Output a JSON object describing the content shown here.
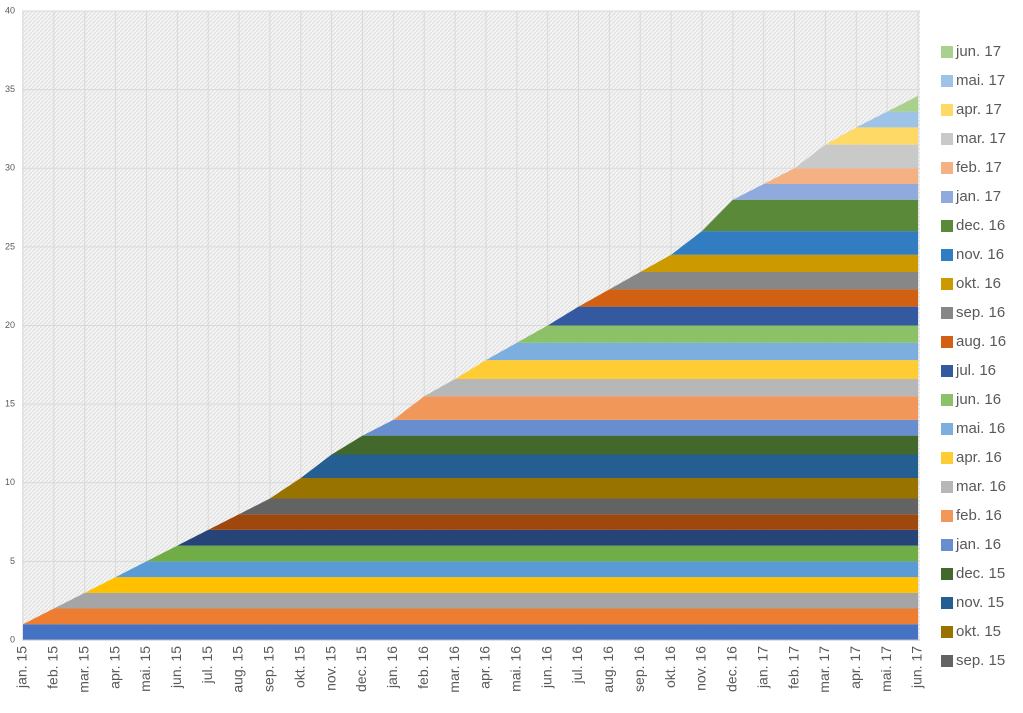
{
  "chart_data": {
    "type": "stacked-area",
    "categories": [
      "jan. 15",
      "feb. 15",
      "mar. 15",
      "apr. 15",
      "mai. 15",
      "jun. 15",
      "jul. 15",
      "aug. 15",
      "sep. 15",
      "okt. 15",
      "nov. 15",
      "dec. 15",
      "jan. 16",
      "feb. 16",
      "mar. 16",
      "apr. 16",
      "mai. 16",
      "jun. 16",
      "jul. 16",
      "aug. 16",
      "sep. 16",
      "okt. 16",
      "nov. 16",
      "dec. 16",
      "jan. 17",
      "feb. 17",
      "mar. 17",
      "apr. 17",
      "mai. 17",
      "jun. 17"
    ],
    "ylim": [
      0,
      40
    ],
    "yticks": [
      0,
      5,
      10,
      15,
      20,
      25,
      30,
      35,
      40
    ],
    "grid": true,
    "series": [
      {
        "color": "#4472c4",
        "values": [
          1,
          1,
          1,
          1,
          1,
          1,
          1,
          1,
          1,
          1,
          1,
          1,
          1,
          1,
          1,
          1,
          1,
          1,
          1,
          1,
          1,
          1,
          1,
          1,
          1,
          1,
          1,
          1,
          1,
          1
        ]
      },
      {
        "color": "#ed7d31",
        "values": [
          0,
          1,
          1,
          1,
          1,
          1,
          1,
          1,
          1,
          1,
          1,
          1,
          1,
          1,
          1,
          1,
          1,
          1,
          1,
          1,
          1,
          1,
          1,
          1,
          1,
          1,
          1,
          1,
          1,
          1
        ]
      },
      {
        "color": "#a5a5a5",
        "values": [
          0,
          0,
          1,
          1,
          1,
          1,
          1,
          1,
          1,
          1,
          1,
          1,
          1,
          1,
          1,
          1,
          1,
          1,
          1,
          1,
          1,
          1,
          1,
          1,
          1,
          1,
          1,
          1,
          1,
          1
        ]
      },
      {
        "color": "#ffc000",
        "values": [
          0,
          0,
          0,
          1,
          1,
          1,
          1,
          1,
          1,
          1,
          1,
          1,
          1,
          1,
          1,
          1,
          1,
          1,
          1,
          1,
          1,
          1,
          1,
          1,
          1,
          1,
          1,
          1,
          1,
          1
        ]
      },
      {
        "color": "#5b9bd5",
        "values": [
          0,
          0,
          0,
          0,
          1,
          1,
          1,
          1,
          1,
          1,
          1,
          1,
          1,
          1,
          1,
          1,
          1,
          1,
          1,
          1,
          1,
          1,
          1,
          1,
          1,
          1,
          1,
          1,
          1,
          1
        ]
      },
      {
        "color": "#70ad47",
        "values": [
          0,
          0,
          0,
          0,
          0,
          1,
          1,
          1,
          1,
          1,
          1,
          1,
          1,
          1,
          1,
          1,
          1,
          1,
          1,
          1,
          1,
          1,
          1,
          1,
          1,
          1,
          1,
          1,
          1,
          1
        ]
      },
      {
        "color": "#264478",
        "values": [
          0,
          0,
          0,
          0,
          0,
          0,
          1,
          1,
          1,
          1,
          1,
          1,
          1,
          1,
          1,
          1,
          1,
          1,
          1,
          1,
          1,
          1,
          1,
          1,
          1,
          1,
          1,
          1,
          1,
          1
        ]
      },
      {
        "color": "#9e480e",
        "values": [
          0,
          0,
          0,
          0,
          0,
          0,
          0,
          1,
          1,
          1,
          1,
          1,
          1,
          1,
          1,
          1,
          1,
          1,
          1,
          1,
          1,
          1,
          1,
          1,
          1,
          1,
          1,
          1,
          1,
          1
        ]
      },
      {
        "name": "sep. 15",
        "color": "#636363",
        "values": [
          0,
          0,
          0,
          0,
          0,
          0,
          0,
          0,
          1,
          1,
          1,
          1,
          1,
          1,
          1,
          1,
          1,
          1,
          1,
          1,
          1,
          1,
          1,
          1,
          1,
          1,
          1,
          1,
          1,
          1
        ]
      },
      {
        "name": "okt. 15",
        "color": "#997300",
        "values": [
          0,
          0,
          0,
          0,
          0,
          0,
          0,
          0,
          0,
          1.3,
          1.3,
          1.3,
          1.3,
          1.3,
          1.3,
          1.3,
          1.3,
          1.3,
          1.3,
          1.3,
          1.3,
          1.3,
          1.3,
          1.3,
          1.3,
          1.3,
          1.3,
          1.3,
          1.3,
          1.3
        ]
      },
      {
        "name": "nov. 15",
        "color": "#255e91",
        "values": [
          0,
          0,
          0,
          0,
          0,
          0,
          0,
          0,
          0,
          0,
          1.5,
          1.5,
          1.5,
          1.5,
          1.5,
          1.5,
          1.5,
          1.5,
          1.5,
          1.5,
          1.5,
          1.5,
          1.5,
          1.5,
          1.5,
          1.5,
          1.5,
          1.5,
          1.5,
          1.5
        ]
      },
      {
        "name": "dec. 15",
        "color": "#43682b",
        "values": [
          0,
          0,
          0,
          0,
          0,
          0,
          0,
          0,
          0,
          0,
          0,
          1.2,
          1.2,
          1.2,
          1.2,
          1.2,
          1.2,
          1.2,
          1.2,
          1.2,
          1.2,
          1.2,
          1.2,
          1.2,
          1.2,
          1.2,
          1.2,
          1.2,
          1.2,
          1.2
        ]
      },
      {
        "name": "jan. 16",
        "color": "#698ed0",
        "values": [
          0,
          0,
          0,
          0,
          0,
          0,
          0,
          0,
          0,
          0,
          0,
          0,
          1,
          1,
          1,
          1,
          1,
          1,
          1,
          1,
          1,
          1,
          1,
          1,
          1,
          1,
          1,
          1,
          1,
          1
        ]
      },
      {
        "name": "feb. 16",
        "color": "#f1975a",
        "values": [
          0,
          0,
          0,
          0,
          0,
          0,
          0,
          0,
          0,
          0,
          0,
          0,
          0,
          1.5,
          1.5,
          1.5,
          1.5,
          1.5,
          1.5,
          1.5,
          1.5,
          1.5,
          1.5,
          1.5,
          1.5,
          1.5,
          1.5,
          1.5,
          1.5,
          1.5
        ]
      },
      {
        "name": "mar. 16",
        "color": "#b7b7b7",
        "values": [
          0,
          0,
          0,
          0,
          0,
          0,
          0,
          0,
          0,
          0,
          0,
          0,
          0,
          0,
          1.1,
          1.1,
          1.1,
          1.1,
          1.1,
          1.1,
          1.1,
          1.1,
          1.1,
          1.1,
          1.1,
          1.1,
          1.1,
          1.1,
          1.1,
          1.1
        ]
      },
      {
        "name": "apr. 16",
        "color": "#ffcd33",
        "values": [
          0,
          0,
          0,
          0,
          0,
          0,
          0,
          0,
          0,
          0,
          0,
          0,
          0,
          0,
          0,
          1.2,
          1.2,
          1.2,
          1.2,
          1.2,
          1.2,
          1.2,
          1.2,
          1.2,
          1.2,
          1.2,
          1.2,
          1.2,
          1.2,
          1.2
        ]
      },
      {
        "name": "mai. 16",
        "color": "#7cafdd",
        "values": [
          0,
          0,
          0,
          0,
          0,
          0,
          0,
          0,
          0,
          0,
          0,
          0,
          0,
          0,
          0,
          0,
          1.1,
          1.1,
          1.1,
          1.1,
          1.1,
          1.1,
          1.1,
          1.1,
          1.1,
          1.1,
          1.1,
          1.1,
          1.1,
          1.1
        ]
      },
      {
        "name": "jun. 16",
        "color": "#8cc168",
        "values": [
          0,
          0,
          0,
          0,
          0,
          0,
          0,
          0,
          0,
          0,
          0,
          0,
          0,
          0,
          0,
          0,
          0,
          1.1,
          1.1,
          1.1,
          1.1,
          1.1,
          1.1,
          1.1,
          1.1,
          1.1,
          1.1,
          1.1,
          1.1,
          1.1
        ]
      },
      {
        "name": "jul. 16",
        "color": "#335aa1",
        "values": [
          0,
          0,
          0,
          0,
          0,
          0,
          0,
          0,
          0,
          0,
          0,
          0,
          0,
          0,
          0,
          0,
          0,
          0,
          1.2,
          1.2,
          1.2,
          1.2,
          1.2,
          1.2,
          1.2,
          1.2,
          1.2,
          1.2,
          1.2,
          1.2
        ]
      },
      {
        "name": "aug. 16",
        "color": "#d26012",
        "values": [
          0,
          0,
          0,
          0,
          0,
          0,
          0,
          0,
          0,
          0,
          0,
          0,
          0,
          0,
          0,
          0,
          0,
          0,
          0,
          1.1,
          1.1,
          1.1,
          1.1,
          1.1,
          1.1,
          1.1,
          1.1,
          1.1,
          1.1,
          1.1
        ]
      },
      {
        "name": "sep. 16",
        "color": "#878787",
        "values": [
          0,
          0,
          0,
          0,
          0,
          0,
          0,
          0,
          0,
          0,
          0,
          0,
          0,
          0,
          0,
          0,
          0,
          0,
          0,
          0,
          1.1,
          1.1,
          1.1,
          1.1,
          1.1,
          1.1,
          1.1,
          1.1,
          1.1,
          1.1
        ]
      },
      {
        "name": "okt. 16",
        "color": "#cc9a00",
        "values": [
          0,
          0,
          0,
          0,
          0,
          0,
          0,
          0,
          0,
          0,
          0,
          0,
          0,
          0,
          0,
          0,
          0,
          0,
          0,
          0,
          0,
          1.1,
          1.1,
          1.1,
          1.1,
          1.1,
          1.1,
          1.1,
          1.1,
          1.1
        ]
      },
      {
        "name": "nov. 16",
        "color": "#327dc2",
        "values": [
          0,
          0,
          0,
          0,
          0,
          0,
          0,
          0,
          0,
          0,
          0,
          0,
          0,
          0,
          0,
          0,
          0,
          0,
          0,
          0,
          0,
          0,
          1.5,
          1.5,
          1.5,
          1.5,
          1.5,
          1.5,
          1.5,
          1.5
        ]
      },
      {
        "name": "dec. 16",
        "color": "#5a8a39",
        "values": [
          0,
          0,
          0,
          0,
          0,
          0,
          0,
          0,
          0,
          0,
          0,
          0,
          0,
          0,
          0,
          0,
          0,
          0,
          0,
          0,
          0,
          0,
          0,
          2,
          2,
          2,
          2,
          2,
          2,
          2
        ]
      },
      {
        "name": "jan. 17",
        "color": "#8faadc",
        "values": [
          0,
          0,
          0,
          0,
          0,
          0,
          0,
          0,
          0,
          0,
          0,
          0,
          0,
          0,
          0,
          0,
          0,
          0,
          0,
          0,
          0,
          0,
          0,
          0,
          1,
          1,
          1,
          1,
          1,
          1
        ]
      },
      {
        "name": "feb. 17",
        "color": "#f4b183",
        "values": [
          0,
          0,
          0,
          0,
          0,
          0,
          0,
          0,
          0,
          0,
          0,
          0,
          0,
          0,
          0,
          0,
          0,
          0,
          0,
          0,
          0,
          0,
          0,
          0,
          0,
          1,
          1,
          1,
          1,
          1
        ]
      },
      {
        "name": "mar. 17",
        "color": "#c9c9c9",
        "values": [
          0,
          0,
          0,
          0,
          0,
          0,
          0,
          0,
          0,
          0,
          0,
          0,
          0,
          0,
          0,
          0,
          0,
          0,
          0,
          0,
          0,
          0,
          0,
          0,
          0,
          0,
          1.5,
          1.5,
          1.5,
          1.5
        ]
      },
      {
        "name": "apr. 17",
        "color": "#ffd966",
        "values": [
          0,
          0,
          0,
          0,
          0,
          0,
          0,
          0,
          0,
          0,
          0,
          0,
          0,
          0,
          0,
          0,
          0,
          0,
          0,
          0,
          0,
          0,
          0,
          0,
          0,
          0,
          0,
          1.1,
          1.1,
          1.1
        ]
      },
      {
        "name": "mai. 17",
        "color": "#9dc3e6",
        "values": [
          0,
          0,
          0,
          0,
          0,
          0,
          0,
          0,
          0,
          0,
          0,
          0,
          0,
          0,
          0,
          0,
          0,
          0,
          0,
          0,
          0,
          0,
          0,
          0,
          0,
          0,
          0,
          0,
          1,
          1
        ]
      },
      {
        "name": "jun. 17",
        "color": "#a9d18e",
        "values": [
          0,
          0,
          0,
          0,
          0,
          0,
          0,
          0,
          0,
          0,
          0,
          0,
          0,
          0,
          0,
          0,
          0,
          0,
          0,
          0,
          0,
          0,
          0,
          0,
          0,
          0,
          0,
          0,
          0,
          1
        ]
      }
    ]
  }
}
